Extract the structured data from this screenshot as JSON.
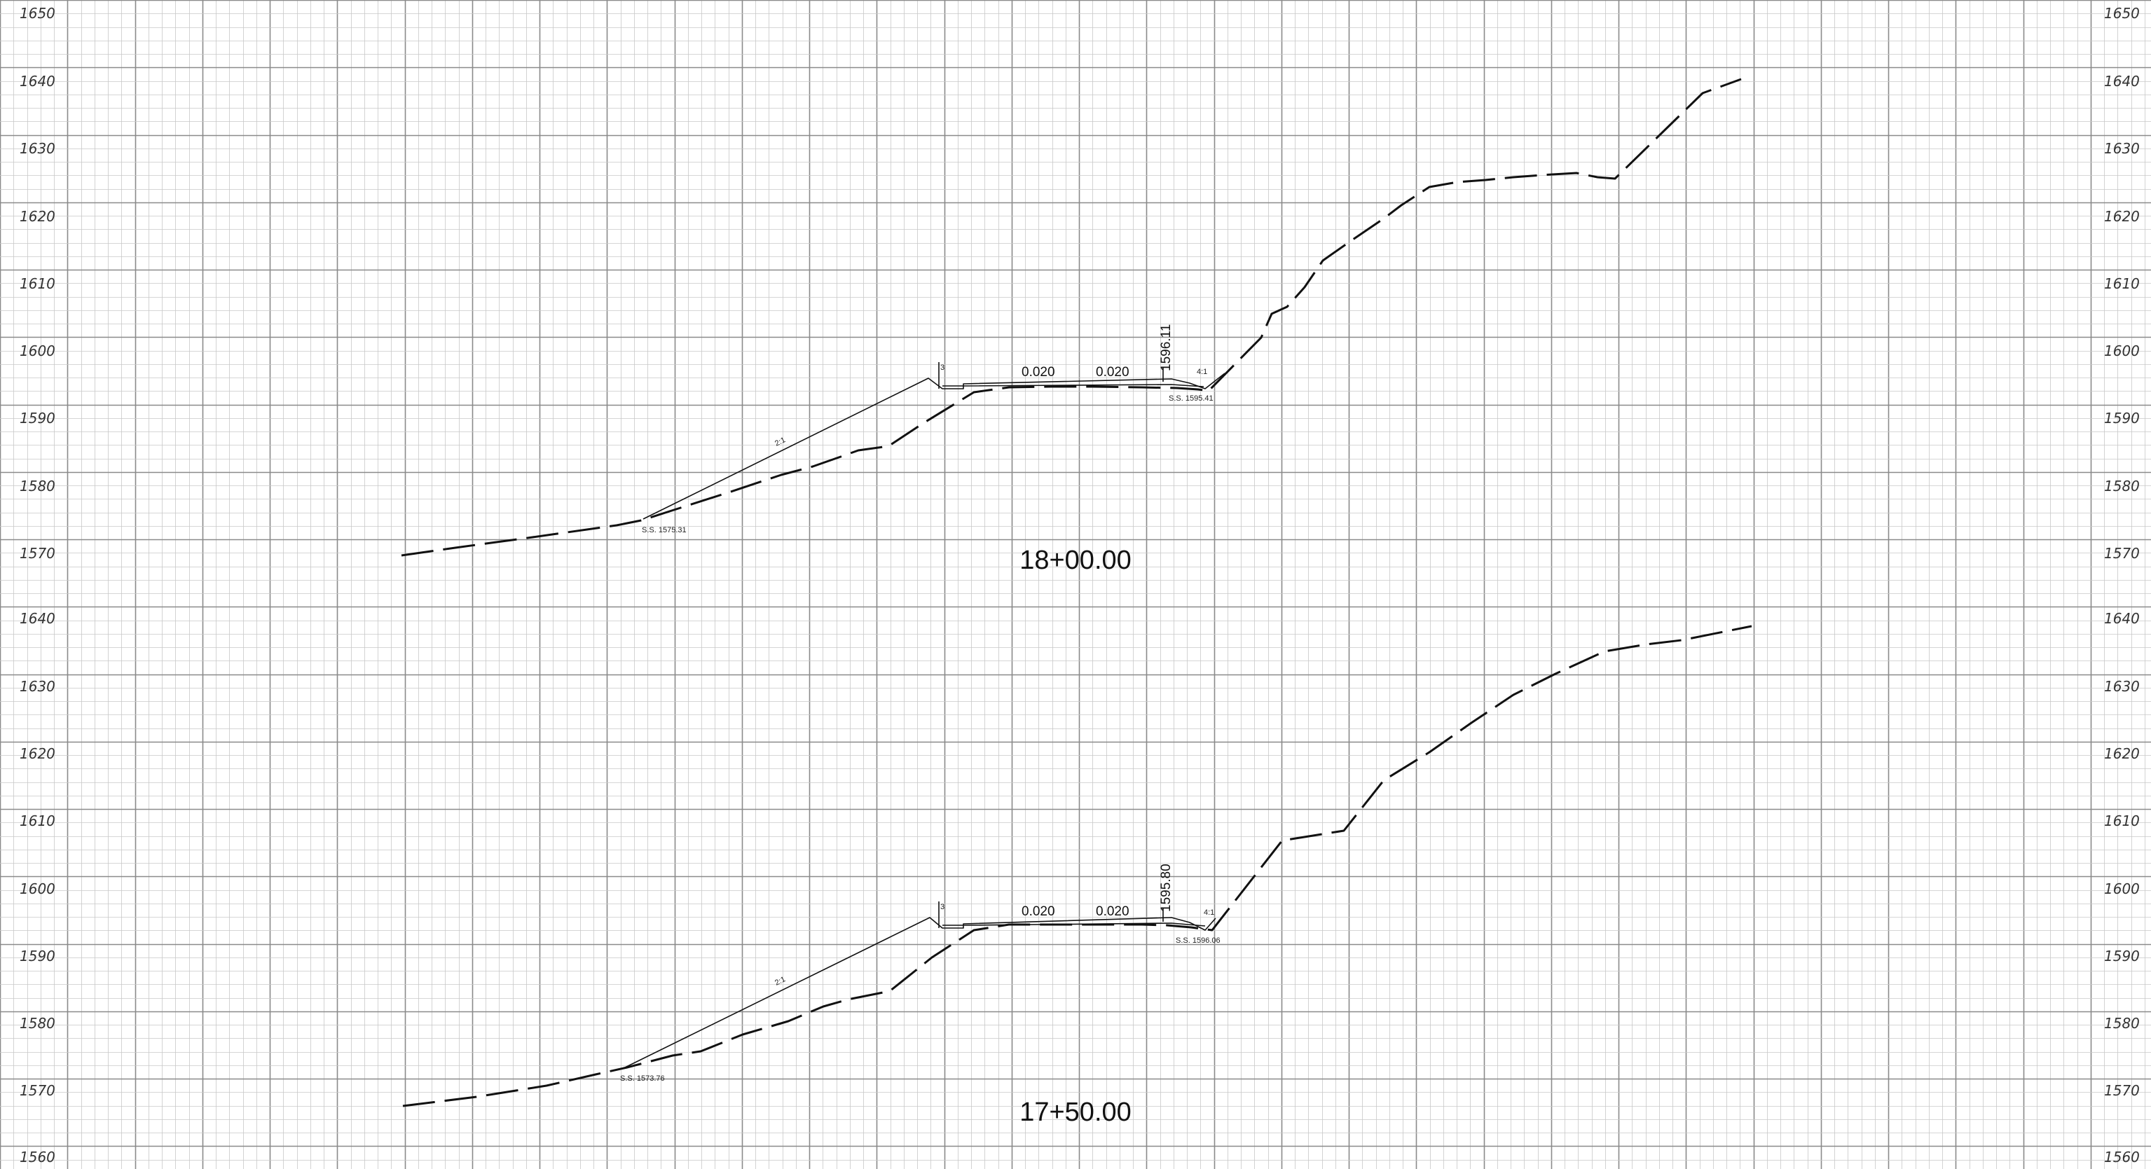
{
  "sections": [
    {
      "station": "18+00.00",
      "elevation_labels": [
        "1650",
        "1640",
        "1630",
        "1620",
        "1610",
        "1600",
        "1590",
        "1580",
        "1570"
      ],
      "crown_elevation": "1596.11",
      "left_grade": "0.020",
      "right_grade": "0.020",
      "left_catch_label": "S.S. 1575.31",
      "right_catch_label": "S.S. 1595.41",
      "left_slope_label": "2:1",
      "right_slope_label": "4:1",
      "curb_label": "3"
    },
    {
      "station": "17+50.00",
      "elevation_labels": [
        "1640",
        "1630",
        "1620",
        "1610",
        "1600",
        "1590",
        "1580",
        "1570",
        "1560"
      ],
      "crown_elevation": "1595.80",
      "left_grade": "0.020",
      "right_grade": "0.020",
      "left_catch_label": "S.S. 1573.76",
      "right_catch_label": "S.S. 1596.06",
      "left_slope_label": "2:1",
      "right_slope_label": "4:1",
      "curb_label": "3"
    }
  ]
}
